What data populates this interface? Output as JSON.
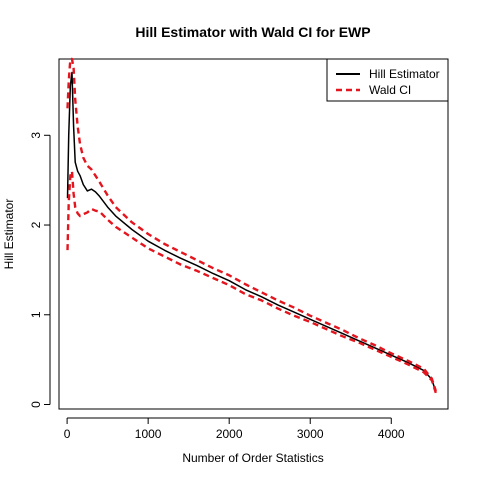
{
  "chart_data": {
    "type": "line",
    "title": "Hill Estimator with Wald CI for EWP",
    "xlabel": "Number of Order Statistics",
    "ylabel": "Hill Estimator",
    "xlim": [
      -100,
      4700
    ],
    "ylim": [
      -0.05,
      3.85
    ],
    "x_ticks": [
      0,
      1000,
      2000,
      3000,
      4000
    ],
    "y_ticks": [
      0,
      1,
      2,
      3
    ],
    "grid": false,
    "legend_position": "top-right",
    "legend": [
      {
        "label": "Hill Estimator",
        "color": "#000000",
        "dash": "solid"
      },
      {
        "label": "Wald CI",
        "color": "#e3161f",
        "dash": "dashed"
      }
    ],
    "series": [
      {
        "name": "Hill Estimator",
        "role": "estimate",
        "color": "#000000",
        "x": [
          5,
          20,
          40,
          60,
          80,
          100,
          130,
          160,
          200,
          250,
          300,
          350,
          400,
          500,
          600,
          800,
          1000,
          1200,
          1400,
          1600,
          1800,
          2000,
          2200,
          2400,
          2600,
          2800,
          3000,
          3200,
          3400,
          3600,
          3800,
          4000,
          4200,
          4400,
          4500,
          4550
        ],
        "y": [
          2.3,
          3.0,
          3.55,
          3.7,
          3.1,
          2.7,
          2.6,
          2.55,
          2.45,
          2.38,
          2.4,
          2.37,
          2.32,
          2.2,
          2.1,
          1.95,
          1.82,
          1.72,
          1.63,
          1.55,
          1.46,
          1.38,
          1.28,
          1.2,
          1.11,
          1.03,
          0.95,
          0.87,
          0.79,
          0.71,
          0.63,
          0.55,
          0.47,
          0.38,
          0.28,
          0.14
        ]
      },
      {
        "name": "Wald CI",
        "role": "upper",
        "color": "#e3161f",
        "x": [
          5,
          20,
          40,
          60,
          80,
          100,
          130,
          160,
          200,
          250,
          300,
          350,
          400,
          500,
          600,
          800,
          1000,
          1200,
          1400,
          1600,
          1800,
          2000,
          2200,
          2400,
          2600,
          2800,
          3000,
          3200,
          3400,
          3600,
          3800,
          4000,
          4200,
          4400,
          4500,
          4550
        ],
        "y": [
          3.3,
          3.6,
          3.85,
          3.85,
          3.75,
          3.4,
          3.1,
          2.9,
          2.75,
          2.66,
          2.62,
          2.55,
          2.48,
          2.33,
          2.2,
          2.03,
          1.9,
          1.79,
          1.7,
          1.61,
          1.52,
          1.44,
          1.34,
          1.25,
          1.16,
          1.08,
          0.99,
          0.91,
          0.83,
          0.74,
          0.66,
          0.57,
          0.49,
          0.4,
          0.29,
          0.15
        ]
      },
      {
        "name": "Wald CI",
        "role": "lower",
        "color": "#e3161f",
        "x": [
          5,
          20,
          40,
          60,
          80,
          100,
          130,
          160,
          200,
          250,
          300,
          350,
          400,
          500,
          600,
          800,
          1000,
          1200,
          1400,
          1600,
          1800,
          2000,
          2200,
          2400,
          2600,
          2800,
          3000,
          3200,
          3400,
          3600,
          3800,
          4000,
          4200,
          4400,
          4500,
          4550
        ],
        "y": [
          1.72,
          2.25,
          2.55,
          2.6,
          2.35,
          2.2,
          2.13,
          2.1,
          2.12,
          2.14,
          2.18,
          2.16,
          2.15,
          2.06,
          1.98,
          1.86,
          1.74,
          1.65,
          1.56,
          1.49,
          1.41,
          1.33,
          1.23,
          1.16,
          1.07,
          0.99,
          0.92,
          0.84,
          0.76,
          0.69,
          0.61,
          0.53,
          0.45,
          0.36,
          0.27,
          0.13
        ]
      }
    ]
  }
}
